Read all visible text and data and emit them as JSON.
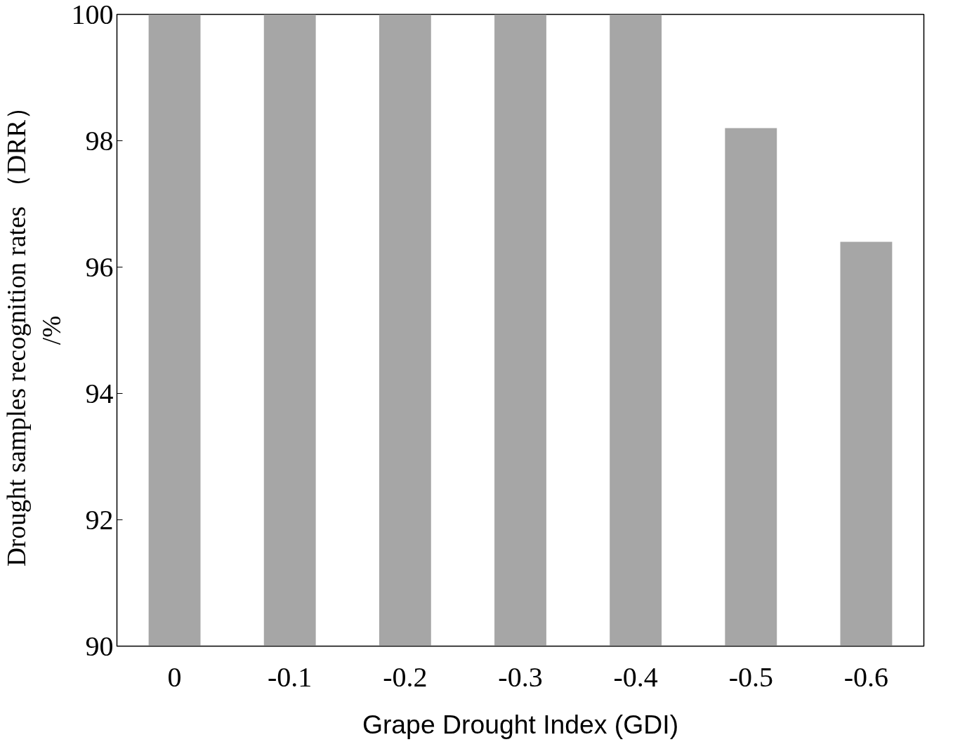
{
  "chart_data": {
    "type": "bar",
    "xlabel": "Grape Drought Index (GDI)",
    "ylabel": "Drought samples recognition rates （DRR）\n/%",
    "categories": [
      "0",
      "-0.1",
      "-0.2",
      "-0.3",
      "-0.4",
      "-0.5",
      "-0.6"
    ],
    "values": [
      100,
      100,
      100,
      100,
      100,
      98.2,
      96.4
    ],
    "color": "#a6a6a6",
    "ylim": [
      90,
      100
    ],
    "yticks": [
      90,
      92,
      94,
      96,
      98,
      100
    ],
    "grid": false
  }
}
